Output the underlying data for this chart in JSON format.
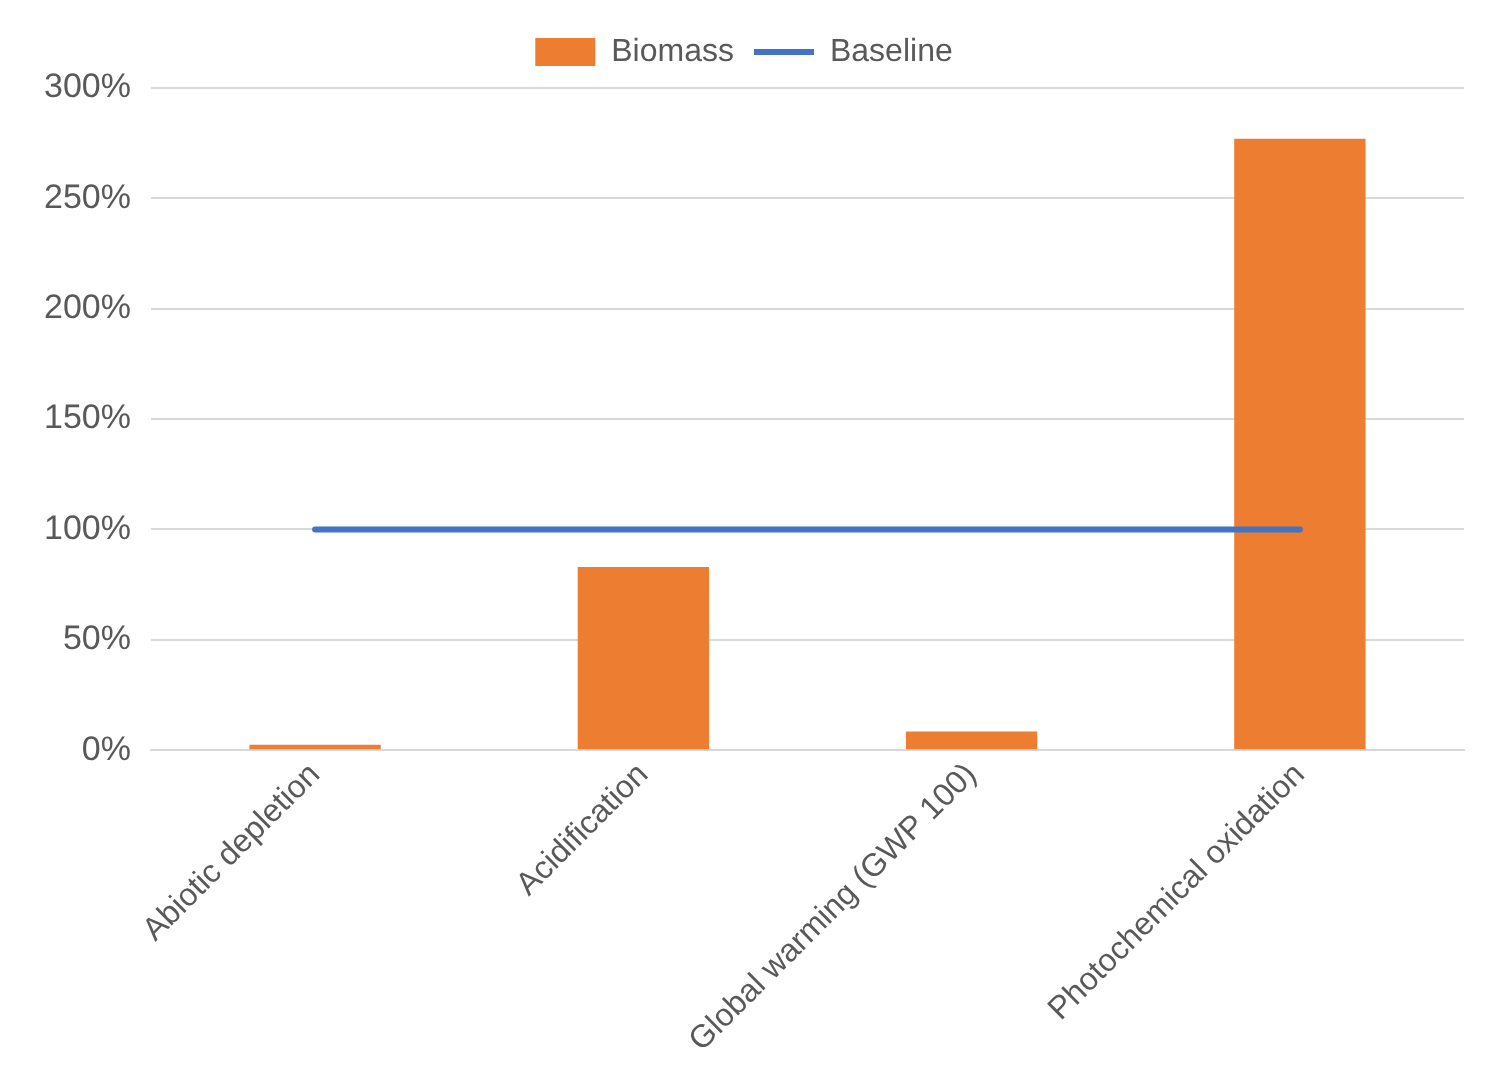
{
  "chart_data": {
    "type": "bar",
    "categories": [
      "Abiotic depletion",
      "Acidification",
      "Global warming (GWP 100)",
      "Photochemical oxidation"
    ],
    "series": [
      {
        "name": "Biomass",
        "color": "#ed7d31",
        "values": [
          2.5,
          83,
          8.5,
          277
        ]
      },
      {
        "name": "Baseline",
        "type": "line",
        "color": "#4472c4",
        "values": [
          100,
          100,
          100,
          100
        ]
      }
    ],
    "ylim": [
      0,
      300
    ],
    "yticks": [
      {
        "value": 0,
        "label": "0%"
      },
      {
        "value": 50,
        "label": "50%"
      },
      {
        "value": 100,
        "label": "100%"
      },
      {
        "value": 150,
        "label": "150%"
      },
      {
        "value": 200,
        "label": "200%"
      },
      {
        "value": 250,
        "label": "250%"
      },
      {
        "value": 300,
        "label": "300%"
      }
    ],
    "grid": "y",
    "legend": "top",
    "marker": "none"
  }
}
